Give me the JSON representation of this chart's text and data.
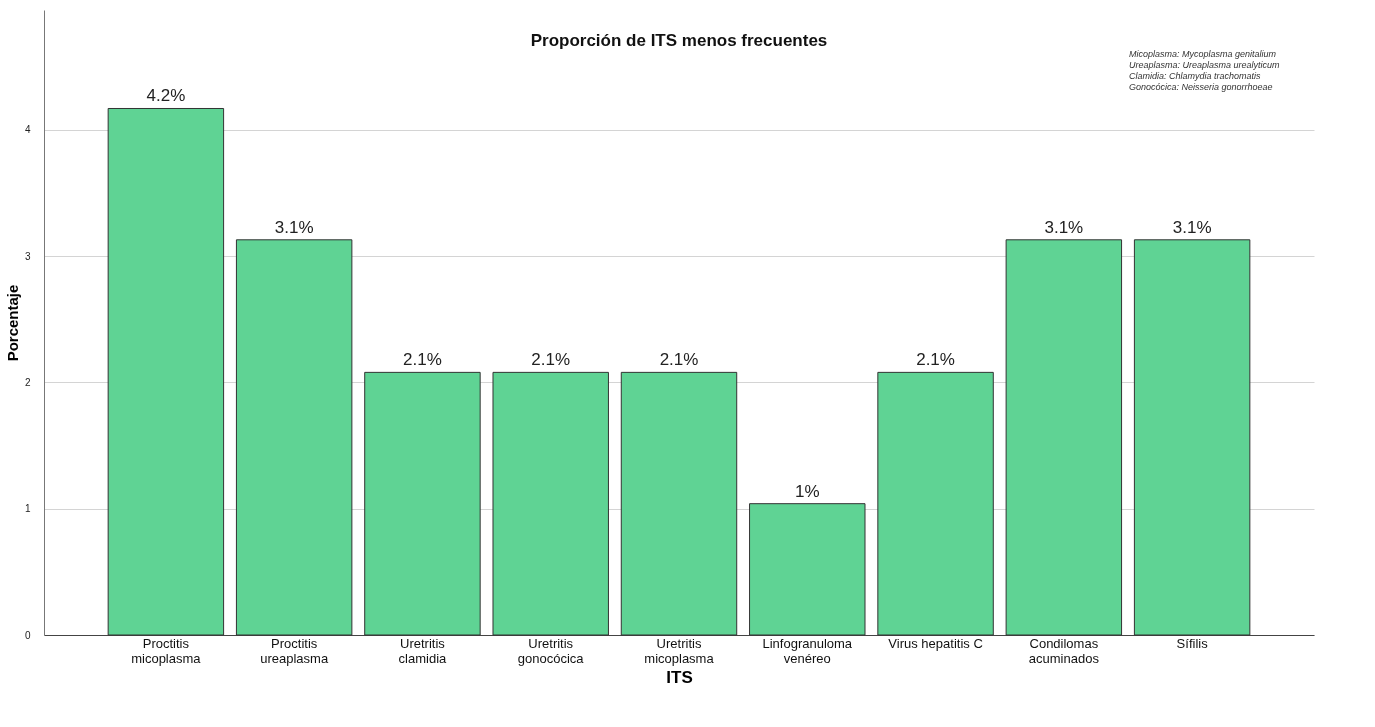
{
  "chart_data": {
    "type": "bar",
    "title": "Proporción de ITS menos frecuentes",
    "xlabel": "ITS",
    "ylabel": "Porcentaje",
    "categories": [
      "Proctitis\nmicoplasma",
      "Proctitis\nureaplasma",
      "Uretritis\nclamidia",
      "Uretritis\ngonocócica",
      "Uretritis\nmicoplasma",
      "Linfogranuloma\nvenéreo",
      "Virus hepatitis C",
      "Condilomas\nacuminados",
      "Sífilis"
    ],
    "values": [
      4.17,
      3.13,
      2.08,
      2.08,
      2.08,
      1.04,
      2.08,
      3.13,
      3.13
    ],
    "value_labels": [
      "4.2%",
      "3.1%",
      "2.1%",
      "2.1%",
      "2.1%",
      "1%",
      "2.1%",
      "3.1%",
      "3.1%"
    ],
    "color": "#5fd394",
    "ylim": [
      0,
      4.95
    ],
    "yticks": [
      0,
      1,
      2,
      3,
      4
    ],
    "grid": "y",
    "annotations": [
      "Micoplasma: Mycoplasma genitalium",
      "Ureaplasma: Ureaplasma urealyticum",
      "Clamidia: Chlamydia trachomatis",
      "Gonocócica: Neisseria gonorrhoeae"
    ]
  }
}
